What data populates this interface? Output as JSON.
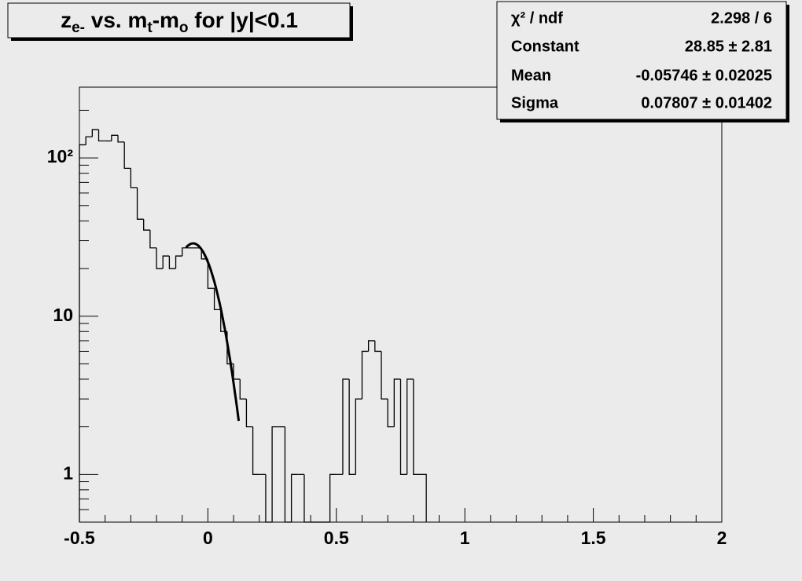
{
  "chart_data": {
    "type": "histogram",
    "title": [
      {
        "text": "z"
      },
      {
        "text": "e-",
        "sub": true
      },
      {
        "text": " vs. m"
      },
      {
        "text": "t",
        "sub": true
      },
      {
        "text": "-m"
      },
      {
        "text": "o",
        "sub": true
      },
      {
        "text": " for |y|<0.1"
      }
    ],
    "bins": [
      -0.5,
      -0.475,
      -0.45,
      -0.425,
      -0.4,
      -0.375,
      -0.35,
      -0.325,
      -0.3,
      -0.275,
      -0.25,
      -0.225,
      -0.2,
      -0.175,
      -0.15,
      -0.125,
      -0.1,
      -0.075,
      -0.05,
      -0.025,
      0,
      0.025,
      0.05,
      0.075,
      0.1,
      0.125,
      0.15,
      0.175,
      0.2,
      0.225,
      0.25,
      0.275,
      0.3,
      0.325,
      0.35,
      0.375,
      0.4,
      0.425,
      0.45,
      0.475,
      0.5,
      0.525,
      0.55,
      0.575,
      0.6,
      0.625,
      0.65,
      0.675,
      0.7,
      0.725,
      0.75,
      0.775,
      0.8,
      0.825,
      0.85
    ],
    "values": [
      121,
      136,
      151,
      128,
      128,
      139,
      126,
      86,
      65,
      41,
      35,
      27,
      20,
      24,
      20,
      24,
      27,
      27,
      27,
      23,
      15,
      11,
      8,
      5,
      4,
      3,
      2,
      1,
      1,
      0,
      2,
      2,
      0,
      1,
      1,
      0,
      0,
      0,
      0,
      1,
      1,
      4,
      1,
      3,
      6,
      7,
      6,
      3,
      2,
      4,
      1,
      4,
      1,
      1
    ],
    "color": "#000000",
    "xlim": [
      -0.5,
      2
    ],
    "xticks": [
      -0.5,
      0,
      0.5,
      1,
      1.5,
      2
    ],
    "xticks_minor": [
      -0.4,
      -0.3,
      -0.2,
      -0.1,
      0.1,
      0.2,
      0.3,
      0.4,
      0.6,
      0.7,
      0.8,
      0.9,
      1.1,
      1.2,
      1.3,
      1.4,
      1.6,
      1.7,
      1.8,
      1.9
    ],
    "ylim": [
      0.5,
      280
    ],
    "yscale": "log",
    "yticks": [
      1,
      10,
      {
        "value": 100,
        "label": "10²"
      }
    ],
    "yticks_minor": [
      0.5,
      0.6,
      0.7,
      0.8,
      0.9,
      2,
      3,
      4,
      5,
      6,
      7,
      8,
      9,
      20,
      30,
      40,
      50,
      60,
      70,
      80,
      90,
      200
    ],
    "fit_range": [
      -0.085,
      0.12
    ],
    "stats": [
      {
        "label": "χ² / ndf",
        "value": "2.298 / 6"
      },
      {
        "label": "Constant",
        "value": "28.85 ± 2.81"
      },
      {
        "label": "Mean",
        "value": "-0.05746 ± 0.02025"
      },
      {
        "label": "Sigma",
        "value": "0.07807 ± 0.01402"
      }
    ]
  }
}
